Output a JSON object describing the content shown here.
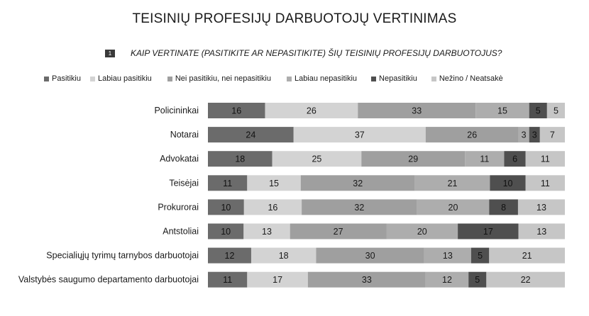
{
  "title": "TEISINIŲ PROFESIJŲ DARBUOTOJŲ VERTINIMAS",
  "question": {
    "number": "1",
    "text": "KAIP VERTINATE (PASITIKITE AR NEPASITIKITE) ŠIŲ TEISINIŲ PROFESIJŲ DARBUOTOJUS?"
  },
  "chart_data": {
    "type": "bar",
    "orientation": "horizontal",
    "stacked": true,
    "categories": [
      "Policininkai",
      "Notarai",
      "Advokatai",
      "Teisėjai",
      "Prokurorai",
      "Antstoliai",
      "Specialiųjų tyrimų tarnybos darbuotojai",
      "Valstybės saugumo departamento darbuotojai"
    ],
    "series": [
      {
        "name": "Pasitikiu",
        "color": "#6b6b6b",
        "values": [
          16,
          24,
          18,
          11,
          10,
          10,
          12,
          11
        ]
      },
      {
        "name": "Labiau pasitikiu",
        "color": "#d3d3d3",
        "values": [
          26,
          37,
          25,
          15,
          16,
          13,
          18,
          17
        ]
      },
      {
        "name": "Nei pasitikiu, nei nepasitikiu",
        "color": "#9f9f9f",
        "values": [
          33,
          26,
          29,
          32,
          32,
          27,
          30,
          33
        ]
      },
      {
        "name": "Labiau nepasitikiu",
        "color": "#adadad",
        "values": [
          15,
          3,
          11,
          21,
          20,
          20,
          13,
          12
        ]
      },
      {
        "name": "Nepasitikiu",
        "color": "#4f4f4f",
        "values": [
          5,
          3,
          6,
          10,
          8,
          17,
          5,
          5
        ]
      },
      {
        "name": "Nežino / Neatsakė",
        "color": "#c6c6c6",
        "values": [
          5,
          7,
          11,
          11,
          13,
          13,
          21,
          22
        ]
      }
    ],
    "grid": false,
    "legend_position": "top"
  }
}
